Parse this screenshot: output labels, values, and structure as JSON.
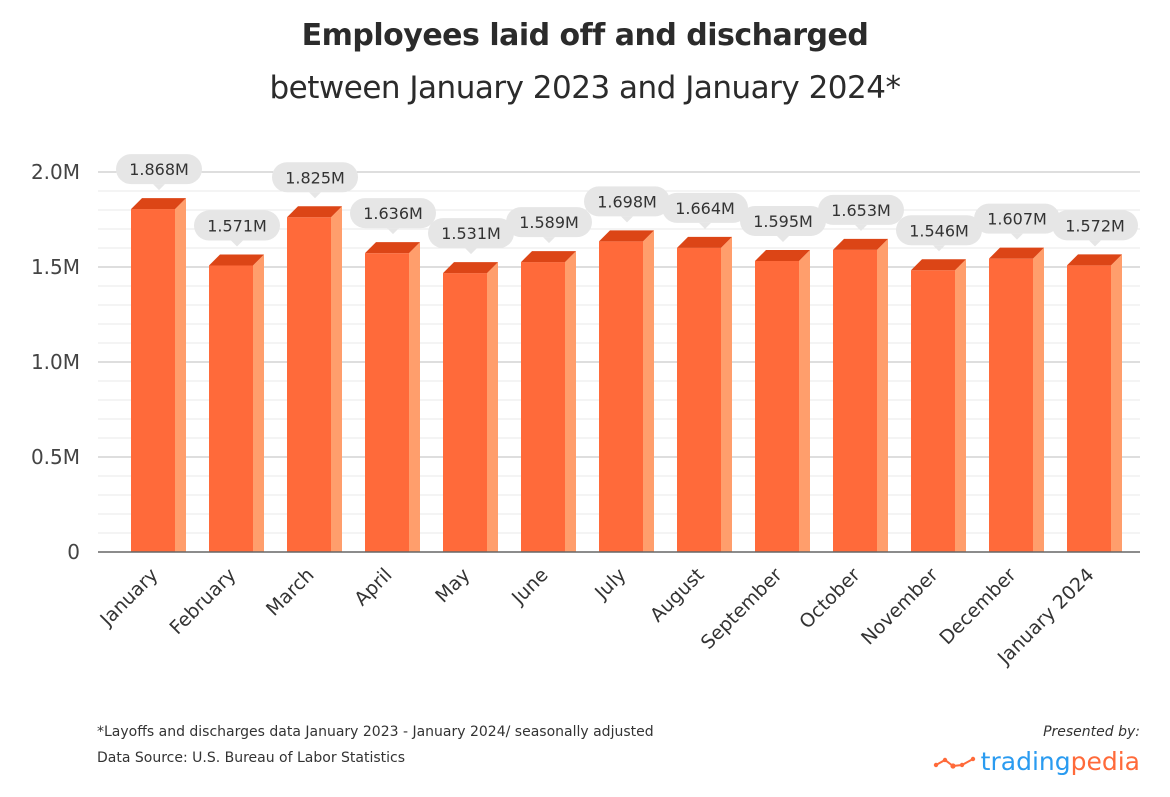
{
  "header": {
    "title": "Employees laid off and discharged",
    "subtitle": "between January 2023 and January 2024*"
  },
  "chart_data": {
    "type": "bar",
    "title": "Employees laid off and discharged",
    "subtitle": "between January 2023 and January 2024*",
    "xlabel": "",
    "ylabel": "",
    "categories": [
      "January",
      "February",
      "March",
      "April",
      "May",
      "June",
      "July",
      "August",
      "September",
      "October",
      "November",
      "December",
      "January 2024"
    ],
    "values": [
      1.868,
      1.571,
      1.825,
      1.636,
      1.531,
      1.589,
      1.698,
      1.664,
      1.595,
      1.653,
      1.546,
      1.607,
      1.572
    ],
    "value_labels": [
      "1.868M",
      "1.571M",
      "1.825M",
      "1.636M",
      "1.531M",
      "1.589M",
      "1.698M",
      "1.664M",
      "1.595M",
      "1.653M",
      "1.546M",
      "1.607M",
      "1.572M"
    ],
    "unit": "M",
    "ylim": [
      0,
      2.0
    ],
    "yticks": [
      0,
      0.5,
      1.0,
      1.5,
      2.0
    ],
    "ytick_labels": [
      "0",
      "0.5M",
      "1.0M",
      "1.5M",
      "2.0M"
    ],
    "grid": true,
    "colors": {
      "front": "#ff6a3a",
      "top": "#dc4516",
      "side": "#ff9e6c",
      "label_bg": "#e6e6e6",
      "grid": "#e8e8e8",
      "major_grid": "#bdbdbd",
      "axis": "#666666"
    }
  },
  "footer": {
    "note": "*Layoffs and discharges data January 2023 - January 2024/ seasonally adjusted",
    "source": "Data Source: U.S. Bureau of Labor Statistics",
    "presented_by": "Presented by:",
    "logo_part1": "trading",
    "logo_part2": "pedia"
  }
}
